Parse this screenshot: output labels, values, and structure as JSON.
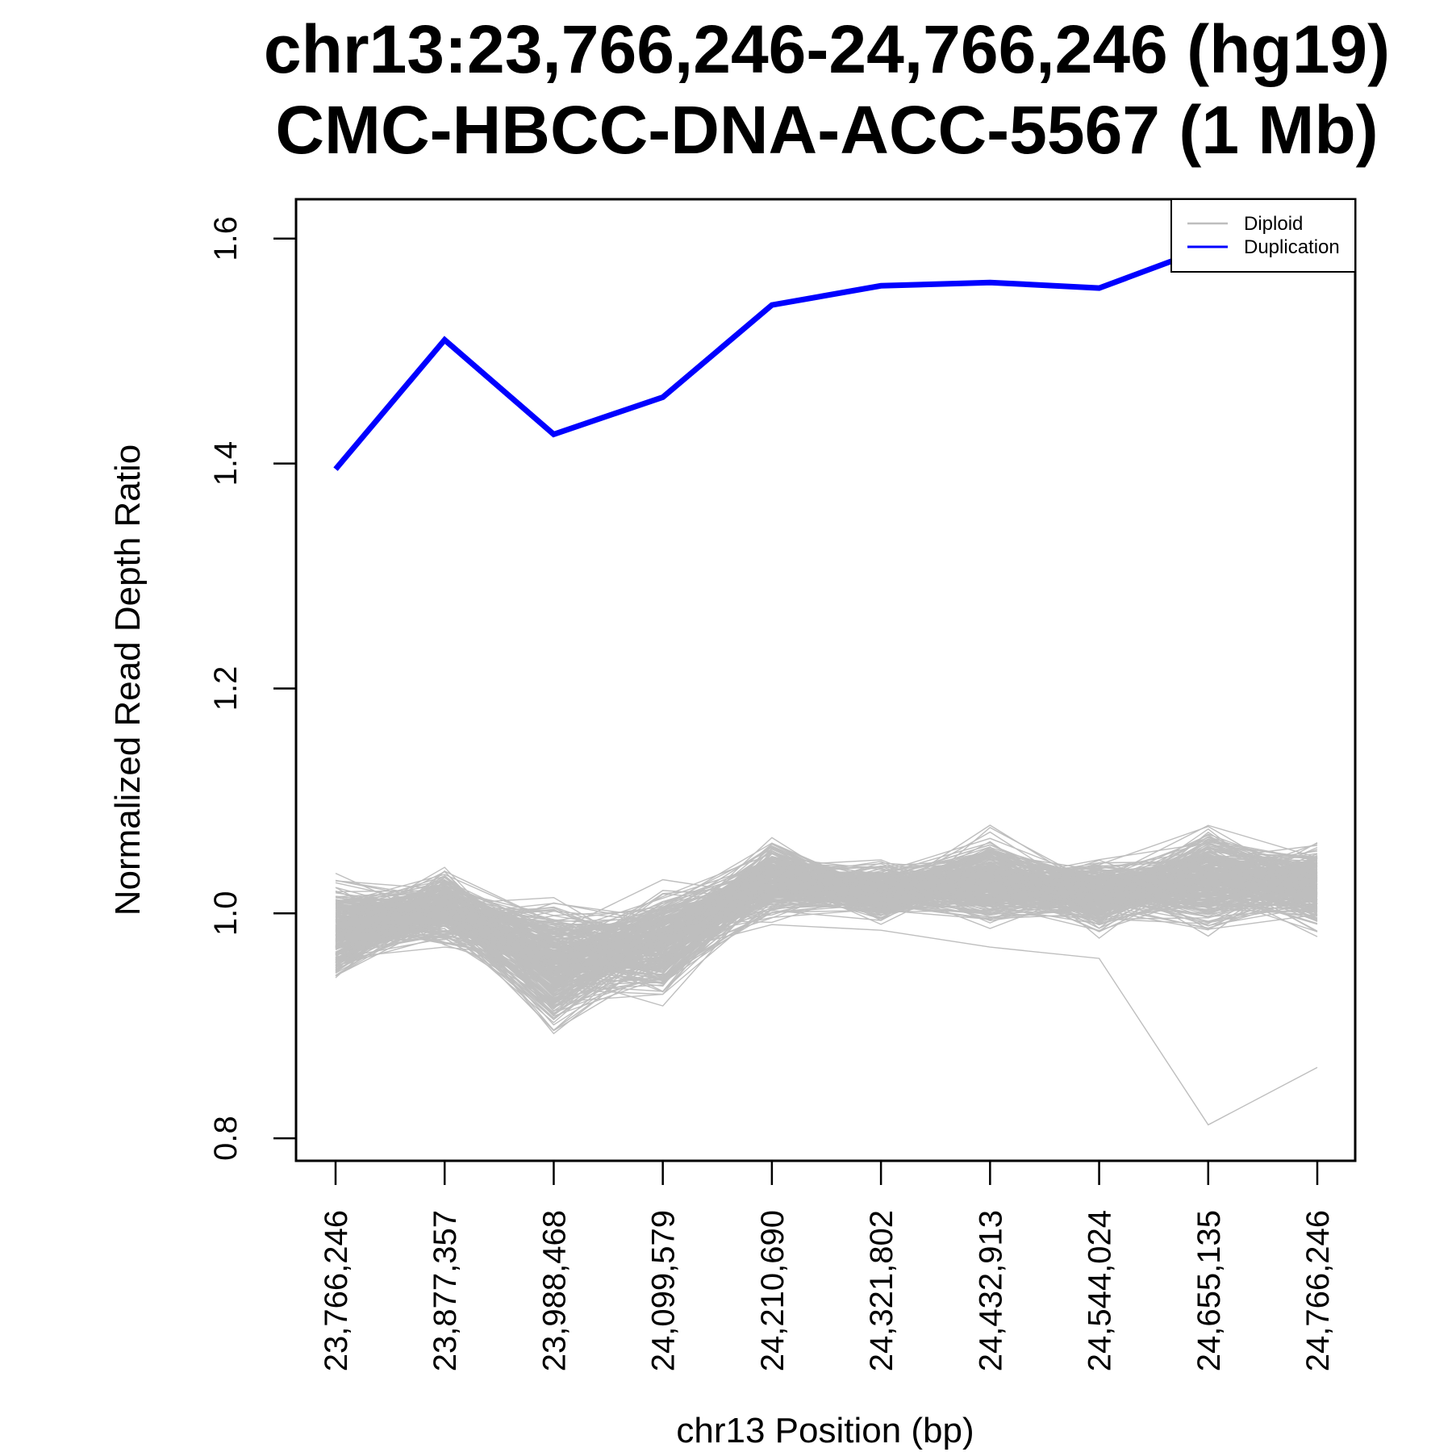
{
  "chart_data": {
    "type": "line",
    "title_line1": "chr13:23,766,246-24,766,246 (hg19)",
    "title_line2": "CMC-HBCC-DNA-ACC-5567 (1 Mb)",
    "xlabel": "chr13 Position (bp)",
    "ylabel": "Normalized Read Depth Ratio",
    "ylim": [
      0.78,
      1.635
    ],
    "y_ticks": [
      0.8,
      1.0,
      1.2,
      1.4,
      1.6
    ],
    "y_tick_labels": [
      "0.8",
      "1.0",
      "1.2",
      "1.4",
      "1.6"
    ],
    "categories": [
      "23,766,246",
      "23,877,357",
      "23,988,468",
      "24,099,579",
      "24,210,690",
      "24,321,802",
      "24,432,913",
      "24,544,024",
      "24,655,135",
      "24,766,246"
    ],
    "series": [
      {
        "name": "Duplication",
        "color": "#0000ff",
        "values": [
          1.395,
          1.51,
          1.426,
          1.459,
          1.541,
          1.558,
          1.561,
          1.556,
          1.592,
          1.628
        ]
      }
    ],
    "diploid_band": {
      "name": "Diploid",
      "color": "#bebebe",
      "count": 300,
      "center": [
        0.985,
        1.005,
        0.955,
        0.975,
        1.03,
        1.02,
        1.03,
        1.015,
        1.03,
        1.025
      ],
      "spread": [
        0.035,
        0.025,
        0.045,
        0.035,
        0.025,
        0.02,
        0.03,
        0.025,
        0.035,
        0.03
      ],
      "outlier_values": [
        0.96,
        0.97,
        0.96,
        0.965,
        0.99,
        0.985,
        0.97,
        0.96,
        0.812,
        0.863
      ]
    },
    "legend": {
      "position": "top-right",
      "entries": [
        {
          "label": "Diploid",
          "color": "#bebebe"
        },
        {
          "label": "Duplication",
          "color": "#0000ff"
        }
      ]
    },
    "grid": false
  }
}
